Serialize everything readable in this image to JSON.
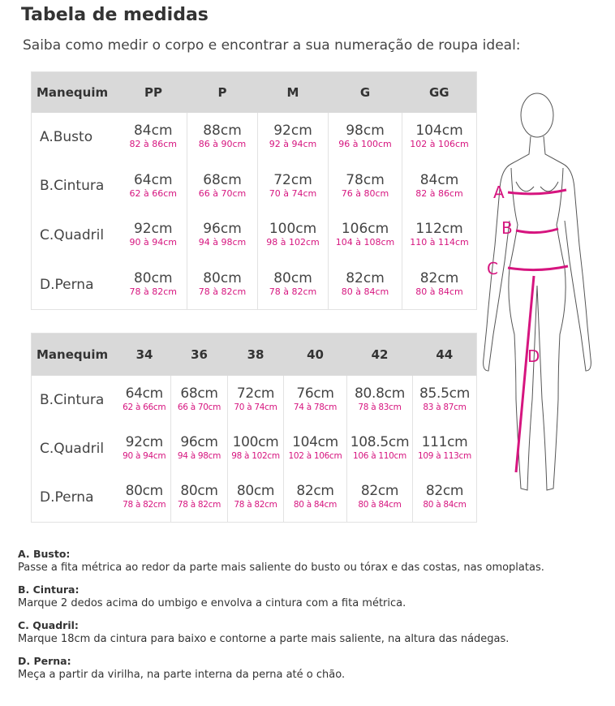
{
  "title": "Tabela de medidas",
  "subtitle": "Saiba como medir o corpo e encontrar a sua numeração de roupa ideal:",
  "accent_color": "#d6157f",
  "table1": {
    "headers": [
      "Manequim",
      "PP",
      "P",
      "M",
      "G",
      "GG"
    ],
    "rows": [
      {
        "label": "A.Busto",
        "cells": [
          [
            "84cm",
            "82 à 86cm"
          ],
          [
            "88cm",
            "86 à 90cm"
          ],
          [
            "92cm",
            "92 à 94cm"
          ],
          [
            "98cm",
            "96 à 100cm"
          ],
          [
            "104cm",
            "102 à 106cm"
          ]
        ]
      },
      {
        "label": "B.Cintura",
        "cells": [
          [
            "64cm",
            "62 à 66cm"
          ],
          [
            "68cm",
            "66 à 70cm"
          ],
          [
            "72cm",
            "70 à 74cm"
          ],
          [
            "78cm",
            "76 à 80cm"
          ],
          [
            "84cm",
            "82 à 86cm"
          ]
        ]
      },
      {
        "label": "C.Quadril",
        "cells": [
          [
            "92cm",
            "90 à 94cm"
          ],
          [
            "96cm",
            "94 à 98cm"
          ],
          [
            "100cm",
            "98 à 102cm"
          ],
          [
            "106cm",
            "104 à 108cm"
          ],
          [
            "112cm",
            "110 à 114cm"
          ]
        ]
      },
      {
        "label": "D.Perna",
        "cells": [
          [
            "80cm",
            "78 à 82cm"
          ],
          [
            "80cm",
            "78 à 82cm"
          ],
          [
            "80cm",
            "78 à 82cm"
          ],
          [
            "82cm",
            "80 à 84cm"
          ],
          [
            "82cm",
            "80 à 84cm"
          ]
        ]
      }
    ]
  },
  "table2": {
    "headers": [
      "Manequim",
      "34",
      "36",
      "38",
      "40",
      "42",
      "44"
    ],
    "rows": [
      {
        "label": "B.Cintura",
        "cells": [
          [
            "64cm",
            "62 à 66cm"
          ],
          [
            "68cm",
            "66 à 70cm"
          ],
          [
            "72cm",
            "70 à 74cm"
          ],
          [
            "76cm",
            "74 à 78cm"
          ],
          [
            "80.8cm",
            "78 à 83cm"
          ],
          [
            "85.5cm",
            "83 à 87cm"
          ]
        ]
      },
      {
        "label": "C.Quadril",
        "cells": [
          [
            "92cm",
            "90 à 94cm"
          ],
          [
            "96cm",
            "94 à 98cm"
          ],
          [
            "100cm",
            "98 à 102cm"
          ],
          [
            "104cm",
            "102 à 106cm"
          ],
          [
            "108.5cm",
            "106 à 110cm"
          ],
          [
            "111cm",
            "109 à 113cm"
          ]
        ]
      },
      {
        "label": "D.Perna",
        "cells": [
          [
            "80cm",
            "78 à 82cm"
          ],
          [
            "80cm",
            "78 à 82cm"
          ],
          [
            "80cm",
            "78 à 82cm"
          ],
          [
            "82cm",
            "80 à 84cm"
          ],
          [
            "82cm",
            "80 à 84cm"
          ],
          [
            "82cm",
            "80 à 84cm"
          ]
        ]
      }
    ]
  },
  "figure": {
    "labels": [
      "A",
      "B",
      "C",
      "D"
    ]
  },
  "descriptions": [
    {
      "title": "A. Busto:",
      "text": "Passe a fita métrica ao redor da parte mais saliente do busto ou tórax e das costas, nas omoplatas."
    },
    {
      "title": "B. Cintura:",
      "text": "Marque 2 dedos acima do umbigo e envolva a cintura com a fita métrica."
    },
    {
      "title": "C. Quadril:",
      "text": "Marque 18cm da cintura para baixo e contorne a parte mais saliente, na altura das nádegas."
    },
    {
      "title": "D. Perna:",
      "text": "Meça a partir da virilha, na parte interna da perna até o chão."
    }
  ]
}
